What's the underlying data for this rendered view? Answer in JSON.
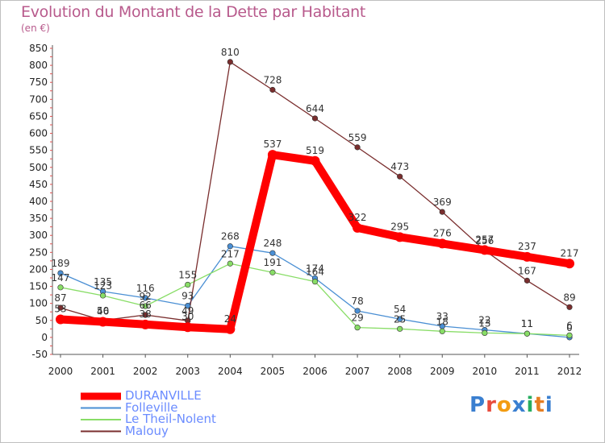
{
  "chart_data": {
    "type": "line",
    "title": "Evolution du Montant de la Dette par Habitant",
    "subtitle": "(en €)",
    "ylim": [
      -50,
      850
    ],
    "yticks": [
      -50,
      0,
      50,
      100,
      150,
      200,
      250,
      300,
      350,
      400,
      450,
      500,
      550,
      600,
      650,
      700,
      750,
      800,
      850
    ],
    "categories": [
      "2000",
      "2001",
      "2002",
      "2003",
      "2004",
      "2005",
      "2006",
      "2007",
      "2008",
      "2009",
      "2010",
      "2011",
      "2012"
    ],
    "series": [
      {
        "name": "DURANVILLE",
        "color": "#ff0000",
        "values": [
          53,
          46,
          38,
          30,
          24,
          537,
          519,
          322,
          295,
          276,
          257,
          237,
          217
        ]
      },
      {
        "name": "Folleville",
        "color": "#4a8fd4",
        "values": [
          189,
          135,
          116,
          93,
          268,
          248,
          174,
          78,
          54,
          33,
          22,
          11,
          0
        ]
      },
      {
        "name": "Le Theil-Nolent",
        "color": "#88dd66",
        "values": [
          147,
          123,
          92,
          155,
          217,
          191,
          164,
          29,
          25,
          18,
          13,
          11,
          6
        ]
      },
      {
        "name": "Malouy",
        "color": "#7a2e2e",
        "values": [
          87,
          50,
          66,
          49,
          810,
          728,
          644,
          559,
          473,
          369,
          256,
          167,
          89
        ]
      }
    ],
    "data_labels": [
      [
        "53",
        "46",
        "38",
        "30",
        "24",
        "537",
        "519",
        "322",
        "295",
        "276",
        "257",
        "237",
        "217"
      ],
      [
        "189",
        "135",
        "116",
        "93",
        "268",
        "248",
        "174",
        "78",
        "54",
        "33",
        "22",
        "11",
        "0"
      ],
      [
        "147",
        "123",
        "92",
        "155",
        "217",
        "191",
        "164",
        "29",
        "25",
        "18",
        "13",
        "11",
        "6"
      ],
      [
        "87",
        "50",
        "66",
        "49",
        "810",
        "728",
        "644",
        "559",
        "473",
        "369",
        "256",
        "167",
        "89"
      ]
    ],
    "legend_position": "bottom-left",
    "grid": false
  },
  "logo": {
    "text": "Proxiti",
    "colors": [
      "#3a7fd0",
      "#e84c3d",
      "#f39c12",
      "#3a7fd0",
      "#27ae60",
      "#e67e22",
      "#3a7fd0"
    ]
  }
}
